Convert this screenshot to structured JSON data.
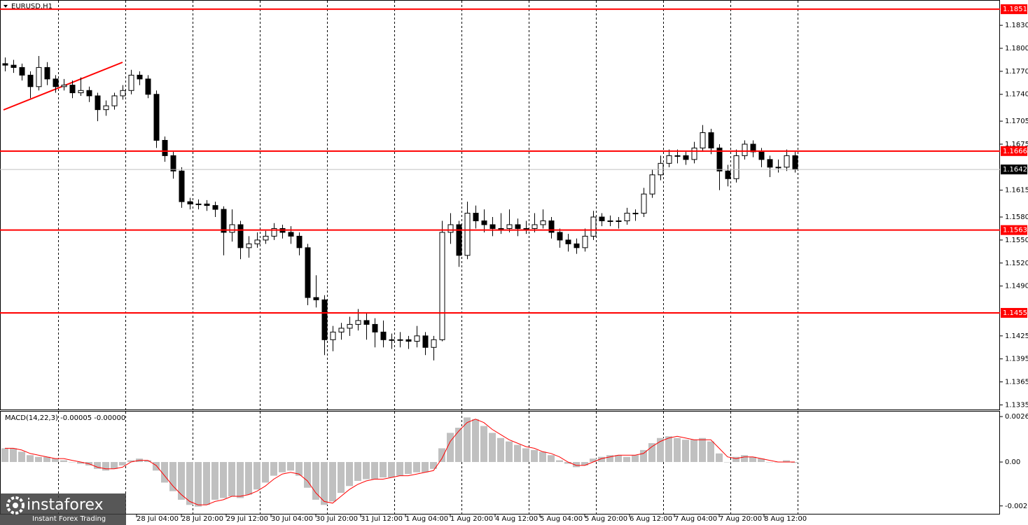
{
  "chart_data": [
    {
      "type": "candlestick",
      "title": "EURUSD,H1",
      "x": [
        1,
        4,
        7,
        10,
        13,
        16,
        19,
        22,
        25,
        28,
        31,
        34,
        37,
        40,
        43,
        46,
        49,
        52,
        55,
        58,
        61,
        64,
        67,
        70,
        73,
        76,
        79,
        82,
        85,
        88,
        91,
        94,
        97,
        100,
        103,
        106,
        109,
        112,
        115,
        118,
        121,
        124,
        127,
        130,
        133,
        136,
        139,
        142,
        145,
        148,
        151,
        154,
        157,
        160,
        163,
        166,
        169,
        172,
        175,
        178,
        181,
        184,
        187,
        190,
        193,
        196,
        199,
        202,
        205,
        208,
        211,
        214,
        217,
        220,
        223,
        226,
        229,
        232,
        235,
        238,
        241,
        244,
        247,
        250,
        253,
        256,
        259,
        262,
        265,
        268,
        271,
        274,
        277,
        280,
        283
      ],
      "ohlc": [
        [
          1.178,
          1.1788,
          1.177,
          1.1778
        ],
        [
          1.1778,
          1.1785,
          1.1768,
          1.1775
        ],
        [
          1.1775,
          1.178,
          1.1758,
          1.1765
        ],
        [
          1.1765,
          1.177,
          1.1735,
          1.175
        ],
        [
          1.175,
          1.179,
          1.1745,
          1.1775
        ],
        [
          1.1775,
          1.1782,
          1.1752,
          1.176
        ],
        [
          1.176,
          1.1765,
          1.1742,
          1.175
        ],
        [
          1.175,
          1.176,
          1.1745,
          1.1752
        ],
        [
          1.1752,
          1.1758,
          1.1735,
          1.1742
        ],
        [
          1.1742,
          1.1762,
          1.1738,
          1.1745
        ],
        [
          1.1745,
          1.175,
          1.173,
          1.1738
        ],
        [
          1.1738,
          1.1742,
          1.1705,
          1.172
        ],
        [
          1.172,
          1.1732,
          1.1712,
          1.1725
        ],
        [
          1.1725,
          1.1742,
          1.172,
          1.1738
        ],
        [
          1.1738,
          1.1752,
          1.1733,
          1.1745
        ],
        [
          1.1745,
          1.1772,
          1.174,
          1.1765
        ],
        [
          1.1765,
          1.177,
          1.1752,
          1.176
        ],
        [
          1.176,
          1.1765,
          1.1735,
          1.174
        ],
        [
          1.174,
          1.1745,
          1.167,
          1.168
        ],
        [
          1.168,
          1.1685,
          1.1652,
          1.166
        ],
        [
          1.166,
          1.1665,
          1.163,
          1.164
        ],
        [
          1.164,
          1.1645,
          1.1592,
          1.16
        ],
        [
          1.16,
          1.1605,
          1.159,
          1.1597
        ],
        [
          1.1597,
          1.1603,
          1.159,
          1.1597
        ],
        [
          1.1597,
          1.1602,
          1.1588,
          1.1595
        ],
        [
          1.1595,
          1.16,
          1.158,
          1.159
        ],
        [
          1.159,
          1.1594,
          1.153,
          1.156
        ],
        [
          1.156,
          1.159,
          1.1548,
          1.157
        ],
        [
          1.157,
          1.1575,
          1.1525,
          1.154
        ],
        [
          1.154,
          1.1555,
          1.1527,
          1.1545
        ],
        [
          1.1545,
          1.156,
          1.154,
          1.155
        ],
        [
          1.155,
          1.1562,
          1.1545,
          1.1555
        ],
        [
          1.1555,
          1.1572,
          1.155,
          1.1565
        ],
        [
          1.1565,
          1.157,
          1.1552,
          1.156
        ],
        [
          1.156,
          1.1568,
          1.1545,
          1.1555
        ],
        [
          1.1555,
          1.156,
          1.153,
          1.154
        ],
        [
          1.154,
          1.1545,
          1.1465,
          1.1475
        ],
        [
          1.1475,
          1.1504,
          1.1462,
          1.1472
        ],
        [
          1.1472,
          1.1478,
          1.14,
          1.142
        ],
        [
          1.142,
          1.1438,
          1.1405,
          1.143
        ],
        [
          1.143,
          1.1442,
          1.142,
          1.1435
        ],
        [
          1.1435,
          1.145,
          1.1425,
          1.144
        ],
        [
          1.144,
          1.146,
          1.1432,
          1.1445
        ],
        [
          1.1445,
          1.1455,
          1.142,
          1.144
        ],
        [
          1.144,
          1.1448,
          1.141,
          1.143
        ],
        [
          1.143,
          1.1445,
          1.141,
          1.142
        ],
        [
          1.142,
          1.1428,
          1.1408,
          1.142
        ],
        [
          1.142,
          1.143,
          1.141,
          1.142
        ],
        [
          1.142,
          1.1425,
          1.1408,
          1.1418
        ],
        [
          1.1418,
          1.1438,
          1.141,
          1.1425
        ],
        [
          1.1425,
          1.143,
          1.14,
          1.141
        ],
        [
          1.141,
          1.1425,
          1.1393,
          1.142
        ],
        [
          1.142,
          1.1575,
          1.1418,
          1.156
        ],
        [
          1.156,
          1.1585,
          1.1545,
          1.157
        ],
        [
          1.157,
          1.1575,
          1.1515,
          1.153
        ],
        [
          1.153,
          1.16,
          1.1525,
          1.1585
        ],
        [
          1.1585,
          1.1595,
          1.1565,
          1.1575
        ],
        [
          1.1575,
          1.159,
          1.156,
          1.157
        ],
        [
          1.157,
          1.158,
          1.1555,
          1.1565
        ],
        [
          1.1565,
          1.1585,
          1.1558,
          1.1565
        ],
        [
          1.1565,
          1.159,
          1.156,
          1.157
        ],
        [
          1.157,
          1.1578,
          1.1555,
          1.1565
        ],
        [
          1.1565,
          1.1575,
          1.1558,
          1.1565
        ],
        [
          1.1565,
          1.1585,
          1.156,
          1.157
        ],
        [
          1.157,
          1.159,
          1.1565,
          1.1575
        ],
        [
          1.1575,
          1.158,
          1.1552,
          1.156
        ],
        [
          1.156,
          1.1565,
          1.154,
          1.155
        ],
        [
          1.155,
          1.1558,
          1.1535,
          1.1545
        ],
        [
          1.1545,
          1.1552,
          1.1532,
          1.154
        ],
        [
          1.154,
          1.1565,
          1.1535,
          1.1555
        ],
        [
          1.1555,
          1.1588,
          1.155,
          1.158
        ],
        [
          1.158,
          1.1585,
          1.1568,
          1.1575
        ],
        [
          1.1575,
          1.1582,
          1.1568,
          1.1575
        ],
        [
          1.1575,
          1.158,
          1.1565,
          1.1575
        ],
        [
          1.1575,
          1.1592,
          1.157,
          1.1585
        ],
        [
          1.1585,
          1.159,
          1.1575,
          1.1585
        ],
        [
          1.1585,
          1.1618,
          1.158,
          1.161
        ],
        [
          1.161,
          1.1642,
          1.1605,
          1.1635
        ],
        [
          1.1635,
          1.166,
          1.1628,
          1.165
        ],
        [
          1.165,
          1.1668,
          1.1645,
          1.166
        ],
        [
          1.166,
          1.1668,
          1.165,
          1.166
        ],
        [
          1.166,
          1.1665,
          1.1648,
          1.1655
        ],
        [
          1.1655,
          1.1678,
          1.165,
          1.167
        ],
        [
          1.167,
          1.17,
          1.1665,
          1.169
        ],
        [
          1.169,
          1.1695,
          1.1662,
          1.167
        ],
        [
          1.167,
          1.1675,
          1.1615,
          1.164
        ],
        [
          1.164,
          1.1648,
          1.162,
          1.163
        ],
        [
          1.163,
          1.1668,
          1.1625,
          1.166
        ],
        [
          1.166,
          1.168,
          1.1655,
          1.1675
        ],
        [
          1.1675,
          1.168,
          1.1658,
          1.1665
        ],
        [
          1.1665,
          1.167,
          1.1645,
          1.1655
        ],
        [
          1.1655,
          1.166,
          1.1632,
          1.1645
        ],
        [
          1.1645,
          1.1655,
          1.1638,
          1.1645
        ],
        [
          1.1645,
          1.1668,
          1.164,
          1.166
        ],
        [
          1.166,
          1.1665,
          1.1638,
          1.1642
        ]
      ],
      "up_color": "#ffffff",
      "down_color": "#000000",
      "xlim": [
        -0.75,
        356.25
      ],
      "xticks": [
        {
          "value": 48,
          "label": "28 Jul 04:00"
        },
        {
          "value": 64,
          "label": "28 Jul 20:00"
        },
        {
          "value": 80,
          "label": "29 Jul 12:00"
        },
        {
          "value": 96,
          "label": "30 Jul 04:00"
        },
        {
          "value": 112,
          "label": "30 Jul 20:00"
        },
        {
          "value": 128,
          "label": "31 Jul 12:00"
        },
        {
          "value": 144,
          "label": "1 Aug 04:00"
        },
        {
          "value": 160,
          "label": "1 Aug 20:00"
        },
        {
          "value": 176,
          "label": "4 Aug 12:00"
        },
        {
          "value": 192,
          "label": "5 Aug 04:00"
        },
        {
          "value": 208,
          "label": "5 Aug 20:00"
        },
        {
          "value": 224,
          "label": "6 Aug 12:00"
        },
        {
          "value": 240,
          "label": "7 Aug 04:00"
        },
        {
          "value": 256,
          "label": "7 Aug 20:00"
        },
        {
          "value": 272,
          "label": "8 Aug 12:00"
        }
      ],
      "ylim": [
        1.1329,
        1.1863
      ],
      "yticks": [
        1.1335,
        1.1365,
        1.1395,
        1.1425,
        {
          "value": 1.149,
          "label": "1.1490"
        },
        {
          "value": 1.152,
          "label": "1.1520"
        },
        {
          "value": 1.155,
          "label": "1.1550"
        },
        {
          "value": 1.158,
          "label": "1.1580"
        },
        1.1615,
        1.1675,
        1.1705,
        {
          "value": 1.174,
          "label": "1.1740"
        },
        {
          "value": 1.177,
          "label": "1.1770"
        },
        {
          "value": 1.18,
          "label": "1.1800"
        },
        {
          "value": 1.183,
          "label": "1.1830"
        }
      ],
      "levels": [
        1.1851,
        1.1666,
        1.1563,
        1.1455
      ],
      "level_color": "#ff0000",
      "last_price": 1.1642
    },
    {
      "type": "macd",
      "title": "MACD(14,22,3) -0.00005 -0.00000",
      "values": [
        0.0008,
        0.0008,
        0.0006,
        0.0004,
        0.0003,
        0.0003,
        0.0002,
        0.0001,
        0,
        -0.0001,
        -0.0002,
        -0.0004,
        -0.0005,
        -0.0004,
        -0.0002,
        0.0001,
        0.0002,
        0.0001,
        -0.0005,
        -0.0012,
        -0.0017,
        -0.0022,
        -0.0025,
        -0.0026,
        -0.0025,
        -0.0022,
        -0.0021,
        -0.002,
        -0.0021,
        -0.0019,
        -0.0016,
        -0.0012,
        -0.0008,
        -0.0006,
        -0.0005,
        -0.0008,
        -0.0015,
        -0.0022,
        -0.0025,
        -0.0023,
        -0.0018,
        -0.0014,
        -0.0011,
        -0.001,
        -0.001,
        -0.0009,
        -0.0009,
        -0.0008,
        -0.0007,
        -0.0006,
        -0.0006,
        -0.0004,
        0.0008,
        0.0017,
        0.002,
        0.0026,
        0.0025,
        0.0021,
        0.0017,
        0.0014,
        0.0012,
        0.001,
        0.0008,
        0.0007,
        0.0006,
        0.0004,
        0.0001,
        -0.0001,
        -0.0003,
        -0.0002,
        0.0002,
        0.0003,
        0.0004,
        0.0004,
        0.0003,
        0.0004,
        0.0007,
        0.0011,
        0.0014,
        0.0015,
        0.0014,
        0.0013,
        0.0013,
        0.0014,
        0.0012,
        0.0005,
        0,
        0.0003,
        0.0004,
        0.0003,
        0.0002,
        0,
        0,
        0.0001,
        -5e-05
      ],
      "signal": [
        0.0008,
        0.0008,
        0.0007,
        0.0005,
        0.0004,
        0.0003,
        0.0002,
        0.0002,
        0.0001,
        0,
        -0.0001,
        -0.0003,
        -0.0004,
        -0.0004,
        -0.0003,
        0,
        0.0001,
        0.0001,
        -0.0002,
        -0.0008,
        -0.0014,
        -0.0019,
        -0.0023,
        -0.0025,
        -0.0025,
        -0.0023,
        -0.0022,
        -0.002,
        -0.002,
        -0.0019,
        -0.0017,
        -0.0014,
        -0.001,
        -0.0007,
        -0.0006,
        -0.0007,
        -0.0011,
        -0.0018,
        -0.0023,
        -0.0024,
        -0.002,
        -0.0016,
        -0.0013,
        -0.0011,
        -0.001,
        -0.001,
        -0.0009,
        -0.0008,
        -0.0008,
        -0.0007,
        -0.0006,
        -0.0005,
        0.0002,
        0.0012,
        0.0018,
        0.0023,
        0.0025,
        0.0023,
        0.0019,
        0.0016,
        0.0013,
        0.0011,
        0.0009,
        0.0008,
        0.0006,
        0.0005,
        0.0003,
        0,
        -0.0002,
        -0.0002,
        0,
        0.0002,
        0.0003,
        0.0004,
        0.0004,
        0.0004,
        0.0005,
        0.0009,
        0.0012,
        0.0014,
        0.0015,
        0.0014,
        0.0013,
        0.0013,
        0.0013,
        0.0008,
        0.0003,
        0.0002,
        0.0003,
        0.0003,
        0.0002,
        0.0001,
        0,
        0,
        0
      ],
      "color": "#c0c0c0",
      "signal_color": "#ff0000",
      "ylim": [
        -0.00306,
        0.00294
      ],
      "yticks": [
        -0.00256,
        {
          "value": 0,
          "label": "0.00"
        },
        0.00265
      ]
    }
  ],
  "watermark": {
    "brand": "instaforex",
    "tagline": "Instant Forex Trading"
  }
}
